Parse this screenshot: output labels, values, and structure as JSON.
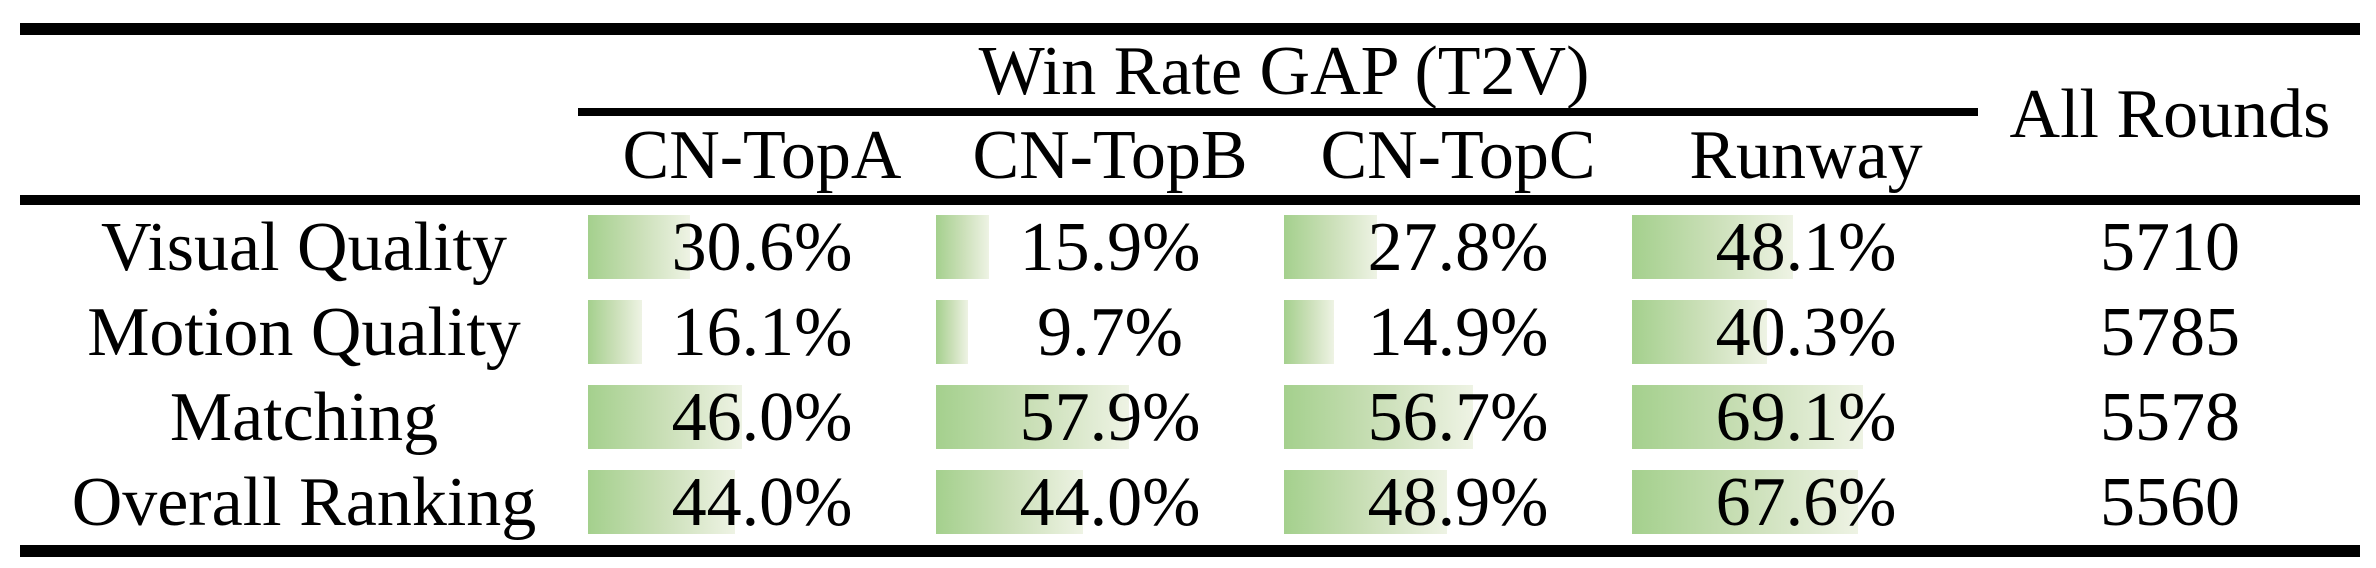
{
  "table": {
    "group_header": "Win Rate GAP (T2V)",
    "all_rounds_label": "All Rounds",
    "columns": [
      "CN-TopA",
      "CN-TopB",
      "CN-TopC",
      "Runway"
    ],
    "rows": [
      {
        "label": "Visual Quality",
        "cells": [
          "30.6%",
          "15.9%",
          "27.8%",
          "48.1%"
        ],
        "all_rounds": "5710"
      },
      {
        "label": "Motion Quality",
        "cells": [
          "16.1%",
          "9.7%",
          "14.9%",
          "40.3%"
        ],
        "all_rounds": "5785"
      },
      {
        "label": "Matching",
        "cells": [
          "46.0%",
          "57.9%",
          "56.7%",
          "69.1%"
        ],
        "all_rounds": "5578"
      },
      {
        "label": "Overall Ranking",
        "cells": [
          "44.0%",
          "44.0%",
          "48.9%",
          "67.6%"
        ],
        "all_rounds": "5560"
      }
    ]
  },
  "colors": {
    "rule": "#000000",
    "text": "#000000",
    "bar_gradient_left": "#a4d08d",
    "bar_gradient_mid": "#cadfb7",
    "bar_gradient_right": "#eef3e4"
  },
  "chart_data": {
    "type": "table",
    "title": "Win Rate GAP (T2V)",
    "columns": [
      "CN-TopA",
      "CN-TopB",
      "CN-TopC",
      "Runway",
      "All Rounds"
    ],
    "categories": [
      "Visual Quality",
      "Motion Quality",
      "Matching",
      "Overall Ranking"
    ],
    "series": [
      {
        "name": "CN-TopA",
        "values": [
          30.6,
          16.1,
          46.0,
          44.0
        ],
        "unit": "%"
      },
      {
        "name": "CN-TopB",
        "values": [
          15.9,
          9.7,
          57.9,
          44.0
        ],
        "unit": "%"
      },
      {
        "name": "CN-TopC",
        "values": [
          27.8,
          14.9,
          56.7,
          48.9
        ],
        "unit": "%"
      },
      {
        "name": "Runway",
        "values": [
          48.1,
          40.3,
          69.1,
          67.6
        ],
        "unit": "%"
      },
      {
        "name": "All Rounds",
        "values": [
          5710,
          5785,
          5578,
          5560
        ],
        "unit": "rounds"
      }
    ],
    "layout_hints": {
      "data_bars": true,
      "bar_scale_percent_per_pixel": 0.2994,
      "bar_fill": "horizontal green gradient fading to white, length proportional to win-rate value"
    }
  }
}
